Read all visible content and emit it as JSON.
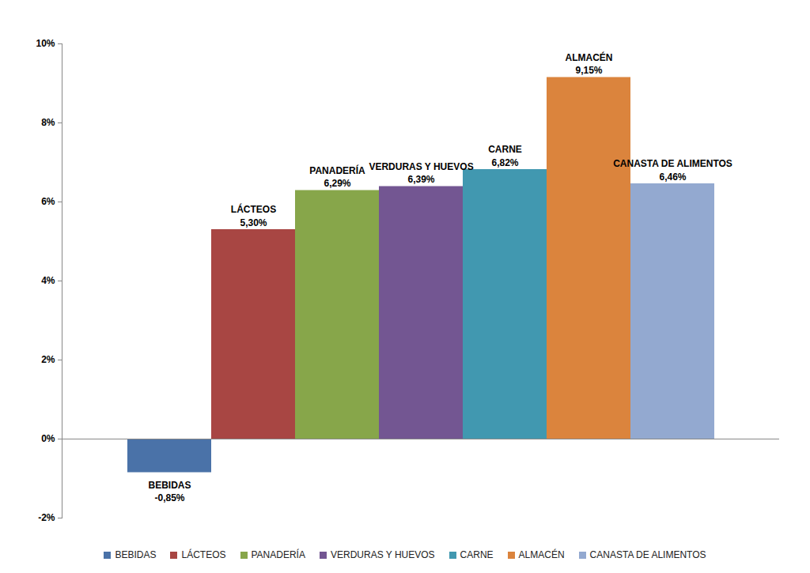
{
  "chart_data": {
    "type": "bar",
    "categories": [
      "BEBIDAS",
      "LÁCTEOS",
      "PANADERÍA",
      "VERDURAS Y HUEVOS",
      "CARNE",
      "ALMACÉN",
      "CANASTA DE ALIMENTOS"
    ],
    "values": [
      -0.85,
      5.3,
      6.29,
      6.39,
      6.82,
      9.15,
      6.46
    ],
    "value_labels": [
      "-0,85%",
      "5,30%",
      "6,29%",
      "6,39%",
      "6,82%",
      "9,15%",
      "6,46%"
    ],
    "colors": [
      "#4a72a8",
      "#a84643",
      "#87a64a",
      "#735692",
      "#4198b0",
      "#db843d",
      "#93a9d0"
    ],
    "ylim": [
      -2,
      10
    ],
    "yticks": [
      {
        "value": -2,
        "label": "-2%"
      },
      {
        "value": 0,
        "label": "0%"
      },
      {
        "value": 2,
        "label": "2%"
      },
      {
        "value": 4,
        "label": "4%"
      },
      {
        "value": 6,
        "label": "6%"
      },
      {
        "value": 8,
        "label": "8%"
      },
      {
        "value": 10,
        "label": "10%"
      }
    ],
    "grid": false,
    "data_labels": true,
    "tick_labels": "y",
    "legend": "bottom"
  }
}
